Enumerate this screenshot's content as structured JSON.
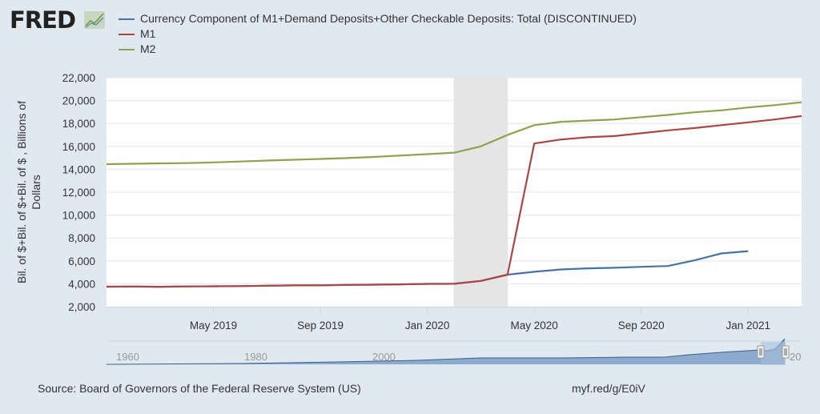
{
  "logo": {
    "text": "FRED"
  },
  "footer": {
    "source": "Source: Board of Governors of the Federal Reserve System (US)",
    "url": "myf.red/g/E0iV"
  },
  "colors": {
    "currency": "#4572a7",
    "m1": "#aa4643",
    "m2": "#89a54e",
    "recession": "#e5e5e5",
    "background": "#e1e9f0"
  },
  "chart_data": {
    "type": "line",
    "ylabel_line1": "Bil. of $+Bil. of $+Bil. of $ , Billions of",
    "ylabel_line2": "Dollars",
    "ylim": [
      2000,
      22000
    ],
    "yticks": [
      "2,000",
      "4,000",
      "6,000",
      "8,000",
      "10,000",
      "12,000",
      "14,000",
      "16,000",
      "18,000",
      "20,000",
      "22,000"
    ],
    "ytick_values": [
      2000,
      4000,
      6000,
      8000,
      10000,
      12000,
      14000,
      16000,
      18000,
      20000,
      22000
    ],
    "xlim": [
      "2019-01",
      "2021-03"
    ],
    "xticks": [
      {
        "date": "2019-05",
        "label": "May 2019"
      },
      {
        "date": "2019-09",
        "label": "Sep 2019"
      },
      {
        "date": "2020-01",
        "label": "Jan 2020"
      },
      {
        "date": "2020-05",
        "label": "May 2020"
      },
      {
        "date": "2020-09",
        "label": "Sep 2020"
      },
      {
        "date": "2021-01",
        "label": "Jan 2021"
      }
    ],
    "grid": true,
    "legend_placement": "top-left",
    "recession": {
      "start": "2020-02",
      "end": "2020-04"
    },
    "x": [
      "2019-01",
      "2019-02",
      "2019-03",
      "2019-04",
      "2019-05",
      "2019-06",
      "2019-07",
      "2019-08",
      "2019-09",
      "2019-10",
      "2019-11",
      "2019-12",
      "2020-01",
      "2020-02",
      "2020-03",
      "2020-04",
      "2020-05",
      "2020-06",
      "2020-07",
      "2020-08",
      "2020-09",
      "2020-10",
      "2020-11",
      "2020-12",
      "2021-01",
      "2021-02",
      "2021-03"
    ],
    "series": [
      {
        "name": "Currency Component of M1+Demand Deposits+Other Checkable Deposits: Total (DISCONTINUED)",
        "color": "#4572a7",
        "values": [
          3750,
          3760,
          3740,
          3770,
          3780,
          3800,
          3830,
          3860,
          3870,
          3900,
          3920,
          3950,
          3990,
          4000,
          4250,
          4800,
          5050,
          5250,
          5350,
          5400,
          5480,
          5550,
          6050,
          6650,
          6850,
          null,
          null
        ]
      },
      {
        "name": "M1",
        "color": "#aa4643",
        "values": [
          3750,
          3760,
          3740,
          3770,
          3780,
          3800,
          3830,
          3860,
          3870,
          3900,
          3920,
          3950,
          3990,
          4000,
          4250,
          4800,
          16250,
          16600,
          16800,
          16900,
          17150,
          17400,
          17600,
          17850,
          18100,
          18350,
          18650
        ]
      },
      {
        "name": "M2",
        "color": "#89a54e",
        "values": [
          14450,
          14480,
          14520,
          14540,
          14600,
          14680,
          14760,
          14830,
          14900,
          14980,
          15080,
          15200,
          15320,
          15450,
          16000,
          17000,
          17850,
          18150,
          18250,
          18350,
          18550,
          18750,
          18980,
          19150,
          19400,
          19600,
          19850
        ]
      }
    ],
    "navigator": {
      "labels": [
        "1960",
        "1980",
        "2000",
        "20"
      ]
    }
  }
}
